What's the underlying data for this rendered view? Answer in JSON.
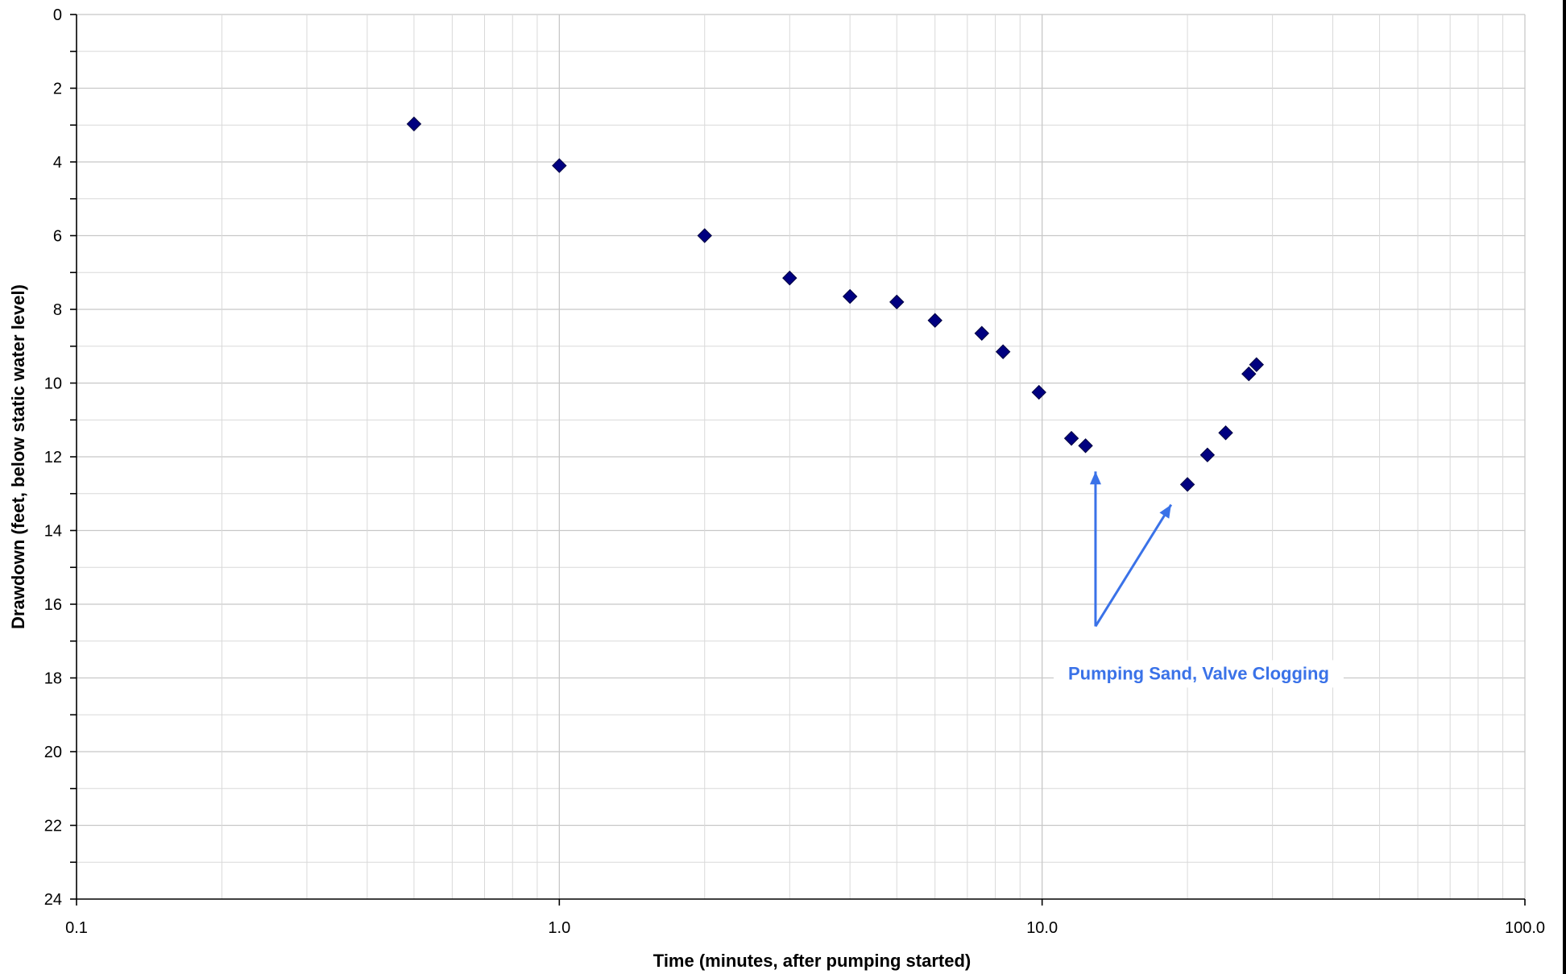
{
  "chart_data": {
    "type": "scatter",
    "title": "",
    "xlabel": "Time (minutes, after pumping started)",
    "ylabel": "Drawdown (feet, below static water level)",
    "x_scale": "log",
    "xlim": [
      0.1,
      100.0
    ],
    "ylim": [
      0,
      24
    ],
    "y_inverted": true,
    "x_ticks": [
      "0.1",
      "1.0",
      "10.0",
      "100.0"
    ],
    "y_ticks": [
      "0",
      "2",
      "4",
      "6",
      "8",
      "10",
      "12",
      "14",
      "16",
      "18",
      "20",
      "22",
      "24"
    ],
    "grid": true,
    "series": [
      {
        "marker": "diamond",
        "color": "#000080",
        "points": [
          {
            "x": 0.5,
            "y": 2.97
          },
          {
            "x": 1.0,
            "y": 4.1
          },
          {
            "x": 2.0,
            "y": 6.0
          },
          {
            "x": 3.0,
            "y": 7.15
          },
          {
            "x": 4.0,
            "y": 7.65
          },
          {
            "x": 5.0,
            "y": 7.8
          },
          {
            "x": 6.0,
            "y": 8.3
          },
          {
            "x": 7.5,
            "y": 8.65
          },
          {
            "x": 8.3,
            "y": 9.15
          },
          {
            "x": 9.85,
            "y": 10.25
          },
          {
            "x": 11.5,
            "y": 11.5
          },
          {
            "x": 12.3,
            "y": 11.7
          },
          {
            "x": 20.0,
            "y": 12.75
          },
          {
            "x": 22.0,
            "y": 11.95
          },
          {
            "x": 24.0,
            "y": 11.35
          },
          {
            "x": 26.8,
            "y": 9.75
          },
          {
            "x": 27.8,
            "y": 9.5
          }
        ]
      }
    ],
    "annotations": [
      {
        "text": "Pumping Sand, Valve Clogging",
        "color": "#3a72e8",
        "arrow_origin": {
          "x": 12.9,
          "y": 16.6
        },
        "arrow_targets": [
          {
            "x": 12.9,
            "y": 12.4
          },
          {
            "x": 18.5,
            "y": 13.3
          }
        ]
      }
    ]
  }
}
